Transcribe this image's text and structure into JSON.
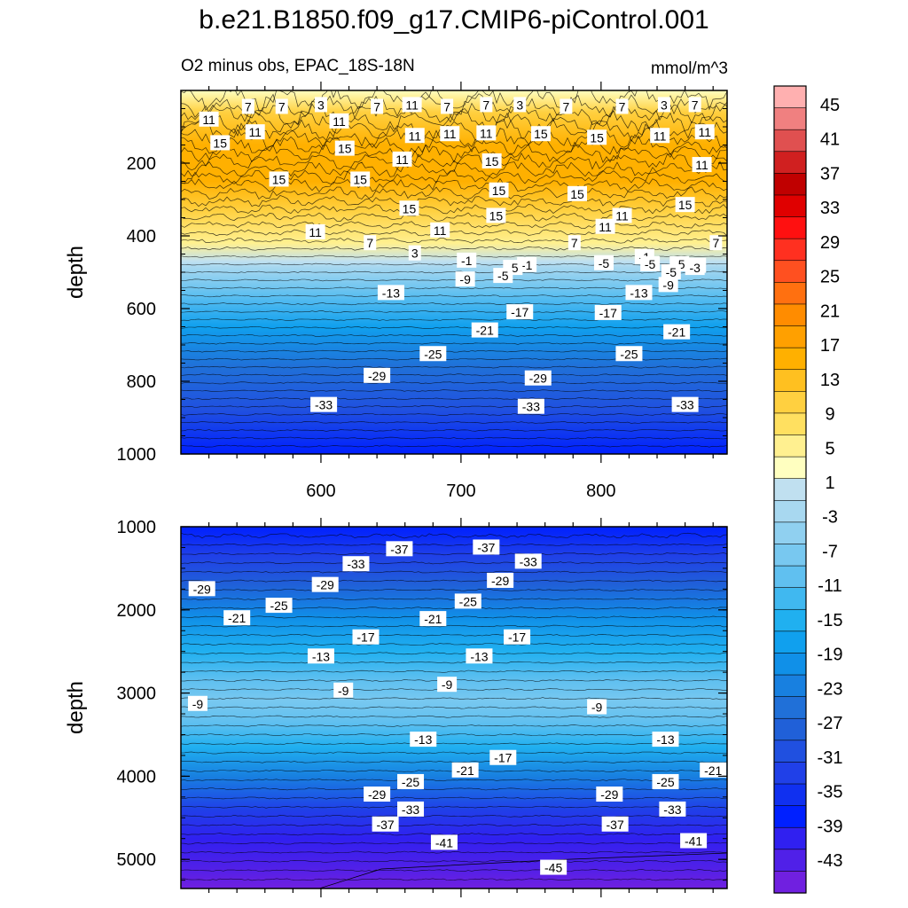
{
  "title": "b.e21.B1850.f09_g17.CMIP6-piControl.001",
  "subtitle": "O2 minus obs, EPAC_18S-18N",
  "units": "mmol/m^3",
  "chart_data": [
    {
      "type": "heatmap",
      "panel": "upper",
      "title": "O2 minus obs, EPAC_18S-18N",
      "xlabel": "",
      "ylabel": "depth",
      "xlim": [
        500,
        890
      ],
      "ylim": [
        0,
        1000
      ],
      "y_inverted": true,
      "xticks": [
        600,
        700,
        800
      ],
      "yticks": [
        200,
        400,
        600,
        800,
        1000
      ],
      "ytick_labels": [
        "200",
        "400",
        "600",
        "800",
        "1000"
      ],
      "depth_profile": [
        {
          "depth": 0,
          "value": 2
        },
        {
          "depth": 60,
          "value": 10
        },
        {
          "depth": 150,
          "value": 15
        },
        {
          "depth": 250,
          "value": 15
        },
        {
          "depth": 330,
          "value": 11
        },
        {
          "depth": 420,
          "value": 5
        },
        {
          "depth": 470,
          "value": 0
        },
        {
          "depth": 485,
          "value": -2
        },
        {
          "depth": 560,
          "value": -10
        },
        {
          "depth": 650,
          "value": -17
        },
        {
          "depth": 760,
          "value": -25
        },
        {
          "depth": 880,
          "value": -31
        },
        {
          "depth": 1000,
          "value": -37
        }
      ],
      "contour_labels": [
        {
          "x": 520,
          "depth": 80,
          "text": "11"
        },
        {
          "x": 548,
          "depth": 45,
          "text": "7"
        },
        {
          "x": 572,
          "depth": 45,
          "text": "7"
        },
        {
          "x": 600,
          "depth": 40,
          "text": "3"
        },
        {
          "x": 640,
          "depth": 45,
          "text": "7"
        },
        {
          "x": 665,
          "depth": 40,
          "text": "11"
        },
        {
          "x": 690,
          "depth": 45,
          "text": "7"
        },
        {
          "x": 718,
          "depth": 40,
          "text": "7"
        },
        {
          "x": 742,
          "depth": 40,
          "text": "3"
        },
        {
          "x": 775,
          "depth": 45,
          "text": "7"
        },
        {
          "x": 815,
          "depth": 45,
          "text": "7"
        },
        {
          "x": 845,
          "depth": 40,
          "text": "3"
        },
        {
          "x": 867,
          "depth": 40,
          "text": "7"
        },
        {
          "x": 895,
          "depth": 45,
          "text": "11"
        },
        {
          "x": 553,
          "depth": 115,
          "text": "11"
        },
        {
          "x": 613,
          "depth": 85,
          "text": "11"
        },
        {
          "x": 667,
          "depth": 125,
          "text": "11"
        },
        {
          "x": 692,
          "depth": 120,
          "text": "11"
        },
        {
          "x": 718,
          "depth": 118,
          "text": "11"
        },
        {
          "x": 757,
          "depth": 120,
          "text": "15"
        },
        {
          "x": 797,
          "depth": 130,
          "text": "15"
        },
        {
          "x": 842,
          "depth": 125,
          "text": "11"
        },
        {
          "x": 874,
          "depth": 115,
          "text": "11"
        },
        {
          "x": 903,
          "depth": 135,
          "text": "15"
        },
        {
          "x": 528,
          "depth": 145,
          "text": "15"
        },
        {
          "x": 617,
          "depth": 160,
          "text": "15"
        },
        {
          "x": 658,
          "depth": 190,
          "text": "11"
        },
        {
          "x": 722,
          "depth": 195,
          "text": "15"
        },
        {
          "x": 872,
          "depth": 205,
          "text": "11"
        },
        {
          "x": 570,
          "depth": 245,
          "text": "15"
        },
        {
          "x": 628,
          "depth": 245,
          "text": "15"
        },
        {
          "x": 727,
          "depth": 275,
          "text": "15"
        },
        {
          "x": 783,
          "depth": 285,
          "text": "15"
        },
        {
          "x": 860,
          "depth": 315,
          "text": "15"
        },
        {
          "x": 815,
          "depth": 345,
          "text": "11"
        },
        {
          "x": 907,
          "depth": 285,
          "text": "15"
        },
        {
          "x": 725,
          "depth": 345,
          "text": "15"
        },
        {
          "x": 663,
          "depth": 325,
          "text": "15"
        },
        {
          "x": 596,
          "depth": 390,
          "text": "11"
        },
        {
          "x": 685,
          "depth": 385,
          "text": "11"
        },
        {
          "x": 803,
          "depth": 375,
          "text": "11"
        },
        {
          "x": 635,
          "depth": 420,
          "text": "7"
        },
        {
          "x": 667,
          "depth": 448,
          "text": "3"
        },
        {
          "x": 781,
          "depth": 420,
          "text": "7"
        },
        {
          "x": 882,
          "depth": 420,
          "text": "7"
        },
        {
          "x": 831,
          "depth": 458,
          "text": "-1"
        },
        {
          "x": 747,
          "depth": 480,
          "text": "-1"
        },
        {
          "x": 868,
          "depth": 482,
          "text": "-1"
        },
        {
          "x": 704,
          "depth": 468,
          "text": "-1"
        },
        {
          "x": 737,
          "depth": 488,
          "text": "-5"
        },
        {
          "x": 867,
          "depth": 488,
          "text": "-3"
        },
        {
          "x": 802,
          "depth": 475,
          "text": "-5"
        },
        {
          "x": 835,
          "depth": 478,
          "text": "-5"
        },
        {
          "x": 856,
          "depth": 478,
          "text": "-5"
        },
        {
          "x": 730,
          "depth": 510,
          "text": "-5"
        },
        {
          "x": 850,
          "depth": 500,
          "text": "-5"
        },
        {
          "x": 703,
          "depth": 520,
          "text": "-9"
        },
        {
          "x": 848,
          "depth": 535,
          "text": "-9"
        },
        {
          "x": 650,
          "depth": 557,
          "text": "-13"
        },
        {
          "x": 827,
          "depth": 557,
          "text": "-13"
        },
        {
          "x": 742,
          "depth": 610,
          "text": "-17"
        },
        {
          "x": 805,
          "depth": 612,
          "text": "-17"
        },
        {
          "x": 717,
          "depth": 660,
          "text": "-21"
        },
        {
          "x": 854,
          "depth": 665,
          "text": "-21"
        },
        {
          "x": 680,
          "depth": 725,
          "text": "-25"
        },
        {
          "x": 820,
          "depth": 725,
          "text": "-25"
        },
        {
          "x": 640,
          "depth": 785,
          "text": "-29"
        },
        {
          "x": 755,
          "depth": 792,
          "text": "-29"
        },
        {
          "x": 602,
          "depth": 865,
          "text": "-33"
        },
        {
          "x": 750,
          "depth": 870,
          "text": "-33"
        },
        {
          "x": 860,
          "depth": 865,
          "text": "-33"
        }
      ]
    },
    {
      "type": "heatmap",
      "panel": "lower",
      "xlabel": "",
      "ylabel": "depth",
      "xlim": [
        500,
        890
      ],
      "ylim": [
        1000,
        5350
      ],
      "y_inverted": true,
      "yticks": [
        1000,
        2000,
        3000,
        4000,
        5000
      ],
      "ytick_labels": [
        "1000",
        "2000",
        "3000",
        "4000",
        "5000"
      ],
      "depth_profile": [
        {
          "depth": 1000,
          "value": -38
        },
        {
          "depth": 1350,
          "value": -33
        },
        {
          "depth": 1700,
          "value": -27
        },
        {
          "depth": 2100,
          "value": -21
        },
        {
          "depth": 2500,
          "value": -14
        },
        {
          "depth": 2850,
          "value": -10
        },
        {
          "depth": 3100,
          "value": -8
        },
        {
          "depth": 3350,
          "value": -10
        },
        {
          "depth": 3650,
          "value": -15
        },
        {
          "depth": 4000,
          "value": -23
        },
        {
          "depth": 4400,
          "value": -33
        },
        {
          "depth": 4750,
          "value": -40
        },
        {
          "depth": 5100,
          "value": -44
        },
        {
          "depth": 5350,
          "value": -46
        }
      ],
      "contour_labels": [
        {
          "x": 515,
          "depth": 1750,
          "text": "-29"
        },
        {
          "x": 540,
          "depth": 2100,
          "text": "-21"
        },
        {
          "x": 570,
          "depth": 1950,
          "text": "-25"
        },
        {
          "x": 603,
          "depth": 1700,
          "text": "-29"
        },
        {
          "x": 625,
          "depth": 1450,
          "text": "-33"
        },
        {
          "x": 656,
          "depth": 1270,
          "text": "-37"
        },
        {
          "x": 718,
          "depth": 1250,
          "text": "-37"
        },
        {
          "x": 748,
          "depth": 1420,
          "text": "-33"
        },
        {
          "x": 728,
          "depth": 1650,
          "text": "-29"
        },
        {
          "x": 705,
          "depth": 1900,
          "text": "-25"
        },
        {
          "x": 680,
          "depth": 2110,
          "text": "-21"
        },
        {
          "x": 632,
          "depth": 2330,
          "text": "-17"
        },
        {
          "x": 740,
          "depth": 2330,
          "text": "-17"
        },
        {
          "x": 600,
          "depth": 2560,
          "text": "-13"
        },
        {
          "x": 713,
          "depth": 2560,
          "text": "-13"
        },
        {
          "x": 616,
          "depth": 2970,
          "text": "-9"
        },
        {
          "x": 512,
          "depth": 3130,
          "text": "-9"
        },
        {
          "x": 690,
          "depth": 2900,
          "text": "-9"
        },
        {
          "x": 797,
          "depth": 3170,
          "text": "-9"
        },
        {
          "x": 673,
          "depth": 3560,
          "text": "-13"
        },
        {
          "x": 846,
          "depth": 3560,
          "text": "-13"
        },
        {
          "x": 730,
          "depth": 3780,
          "text": "-17"
        },
        {
          "x": 703,
          "depth": 3930,
          "text": "-21"
        },
        {
          "x": 880,
          "depth": 3930,
          "text": "-21"
        },
        {
          "x": 664,
          "depth": 4070,
          "text": "-25"
        },
        {
          "x": 846,
          "depth": 4070,
          "text": "-25"
        },
        {
          "x": 640,
          "depth": 4220,
          "text": "-29"
        },
        {
          "x": 806,
          "depth": 4220,
          "text": "-29"
        },
        {
          "x": 664,
          "depth": 4400,
          "text": "-33"
        },
        {
          "x": 851,
          "depth": 4400,
          "text": "-33"
        },
        {
          "x": 646,
          "depth": 4580,
          "text": "-37"
        },
        {
          "x": 810,
          "depth": 4580,
          "text": "-37"
        },
        {
          "x": 688,
          "depth": 4800,
          "text": "-41"
        },
        {
          "x": 866,
          "depth": 4780,
          "text": "-41"
        },
        {
          "x": 766,
          "depth": 5100,
          "text": "-45"
        }
      ]
    }
  ],
  "colorbar": {
    "labels": [
      "45",
      "41",
      "37",
      "33",
      "29",
      "25",
      "21",
      "17",
      "13",
      "9",
      "5",
      "1",
      "-3",
      "-7",
      "-11",
      "-15",
      "-19",
      "-23",
      "-27",
      "-31",
      "-35",
      "-39",
      "-43"
    ],
    "colors": [
      "#ffb0b0",
      "#f08080",
      "#e05050",
      "#d02020",
      "#c00000",
      "#e00000",
      "#ff1010",
      "#ff3020",
      "#ff5020",
      "#ff7010",
      "#ff8c00",
      "#ffa000",
      "#ffb000",
      "#ffc020",
      "#ffd040",
      "#ffe060",
      "#fff090",
      "#ffffc0",
      "#c0e0f0",
      "#a8d8f0",
      "#90d0f0",
      "#78c8f0",
      "#60c0f0",
      "#40b8f0",
      "#20b0f0",
      "#10a0ee",
      "#1090e8",
      "#1880e0",
      "#2070d8",
      "#2060d8",
      "#2050e0",
      "#2040e8",
      "#1030f0",
      "#0020ff",
      "#3020f0",
      "#5020e8",
      "#7020e0"
    ]
  }
}
